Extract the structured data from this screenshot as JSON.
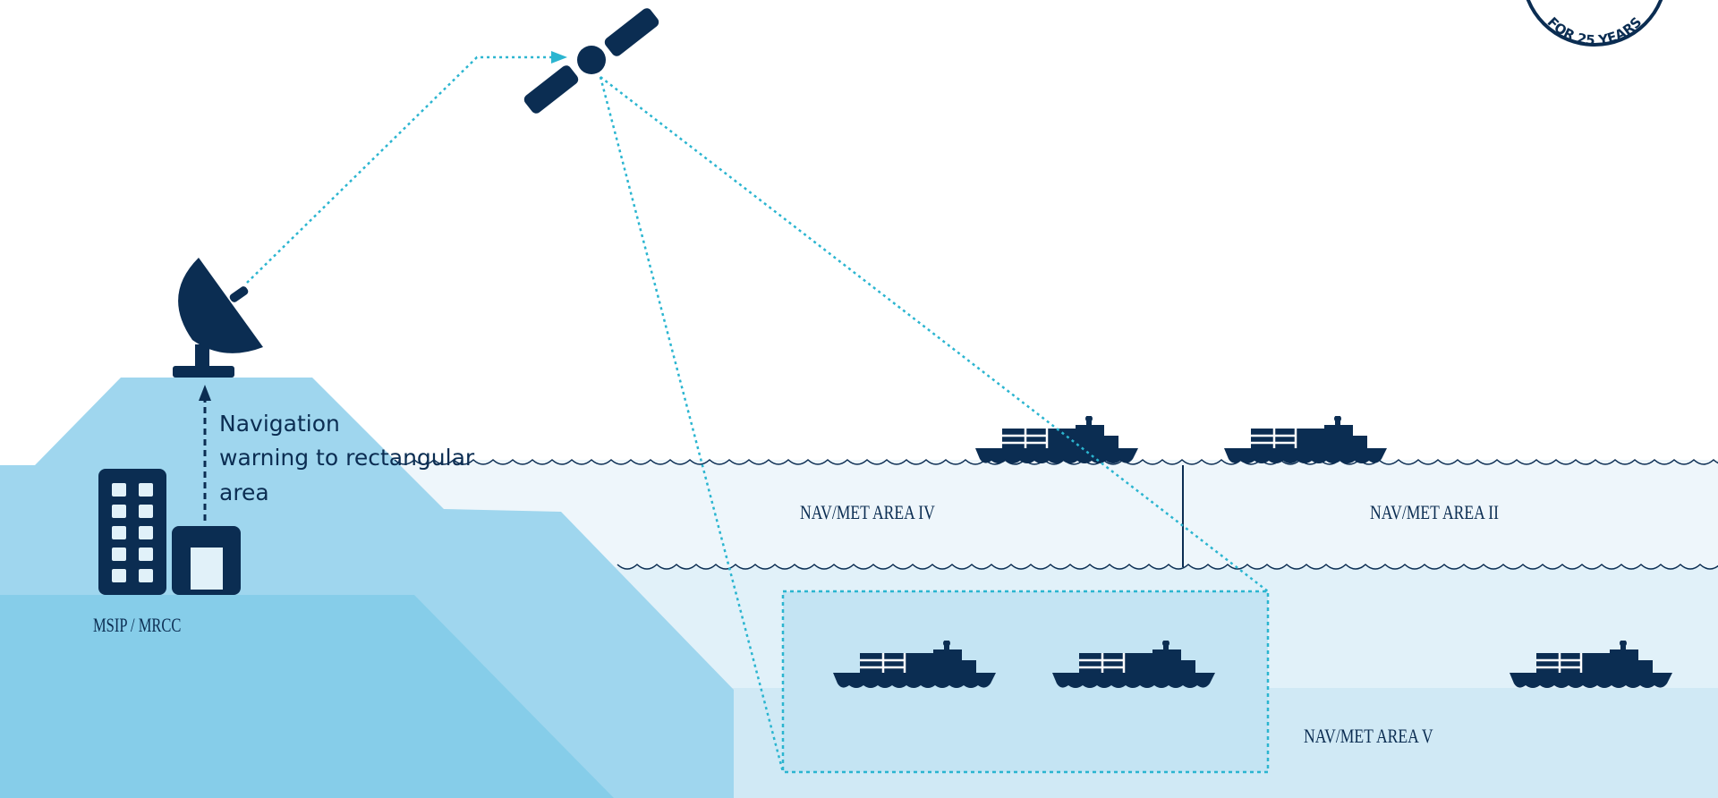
{
  "badge": "FOR 25 YEARS",
  "annotation": {
    "lines": [
      "Navigation",
      "warning to rectangular",
      "area"
    ]
  },
  "station": "MSIP / MRCC",
  "areas": [
    "NAV/MET AREA IV",
    "NAV/MET AREA II",
    "NAV/MET AREA V"
  ]
}
